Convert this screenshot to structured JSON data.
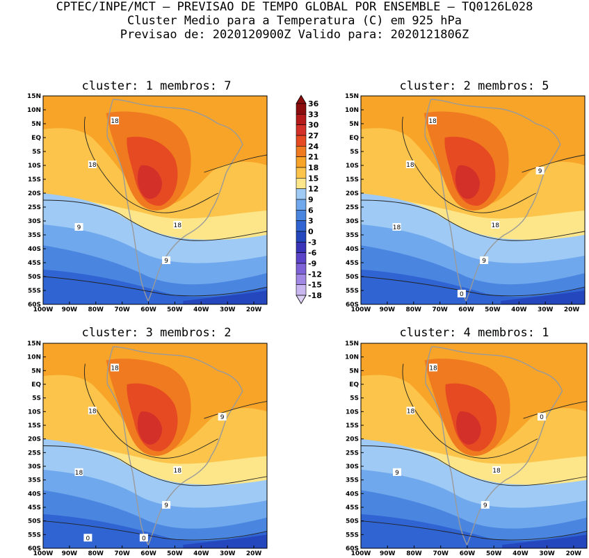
{
  "header": {
    "line1": "CPTEC/INPE/MCT – PREVISAO DE TEMPO GLOBAL POR ENSEMBLE – TQ0126L028",
    "line2": "Cluster Medio para a Temperatura (C) em 925 hPa",
    "line3": "Previsao de: 2020120900Z   Valido para: 2020121806Z"
  },
  "panels": [
    {
      "title": "cluster: 1  membros: 7",
      "contour_labels": [
        "18",
        "18",
        "18",
        "9",
        "9"
      ]
    },
    {
      "title": "cluster: 2  membros: 5",
      "contour_labels": [
        "18",
        "18",
        "18",
        "18",
        "9",
        "9",
        "0"
      ]
    },
    {
      "title": "cluster: 3  membros: 2",
      "contour_labels": [
        "18",
        "18",
        "18",
        "18",
        "9",
        "9",
        "0",
        "0"
      ]
    },
    {
      "title": "cluster: 4  membros: 1",
      "contour_labels": [
        "18",
        "18",
        "18",
        "9",
        "9",
        "0"
      ]
    }
  ],
  "lat_labels": [
    "15N",
    "10N",
    "5N",
    "EQ",
    "5S",
    "10S",
    "15S",
    "20S",
    "25S",
    "30S",
    "35S",
    "40S",
    "45S",
    "50S",
    "55S",
    "60S"
  ],
  "lon_labels": [
    "100W",
    "90W",
    "80W",
    "70W",
    "60W",
    "50W",
    "40W",
    "30W",
    "20W"
  ],
  "colorbar": {
    "ticks": [
      "36",
      "33",
      "30",
      "27",
      "24",
      "21",
      "18",
      "15",
      "12",
      "9",
      "6",
      "3",
      "0",
      "-3",
      "-6",
      "-9",
      "-12",
      "-15",
      "-18"
    ],
    "colors": [
      "#8b0d0d",
      "#b51a1a",
      "#d3302a",
      "#e64a22",
      "#f07a20",
      "#f7a428",
      "#fcc44a",
      "#fde68a",
      "#9ecaf5",
      "#6fa8ec",
      "#4a86e0",
      "#2f64d2",
      "#2547be",
      "#3a34b8",
      "#5c44c8",
      "#7d62d8",
      "#a188e4",
      "#c7b6f0"
    ]
  }
}
